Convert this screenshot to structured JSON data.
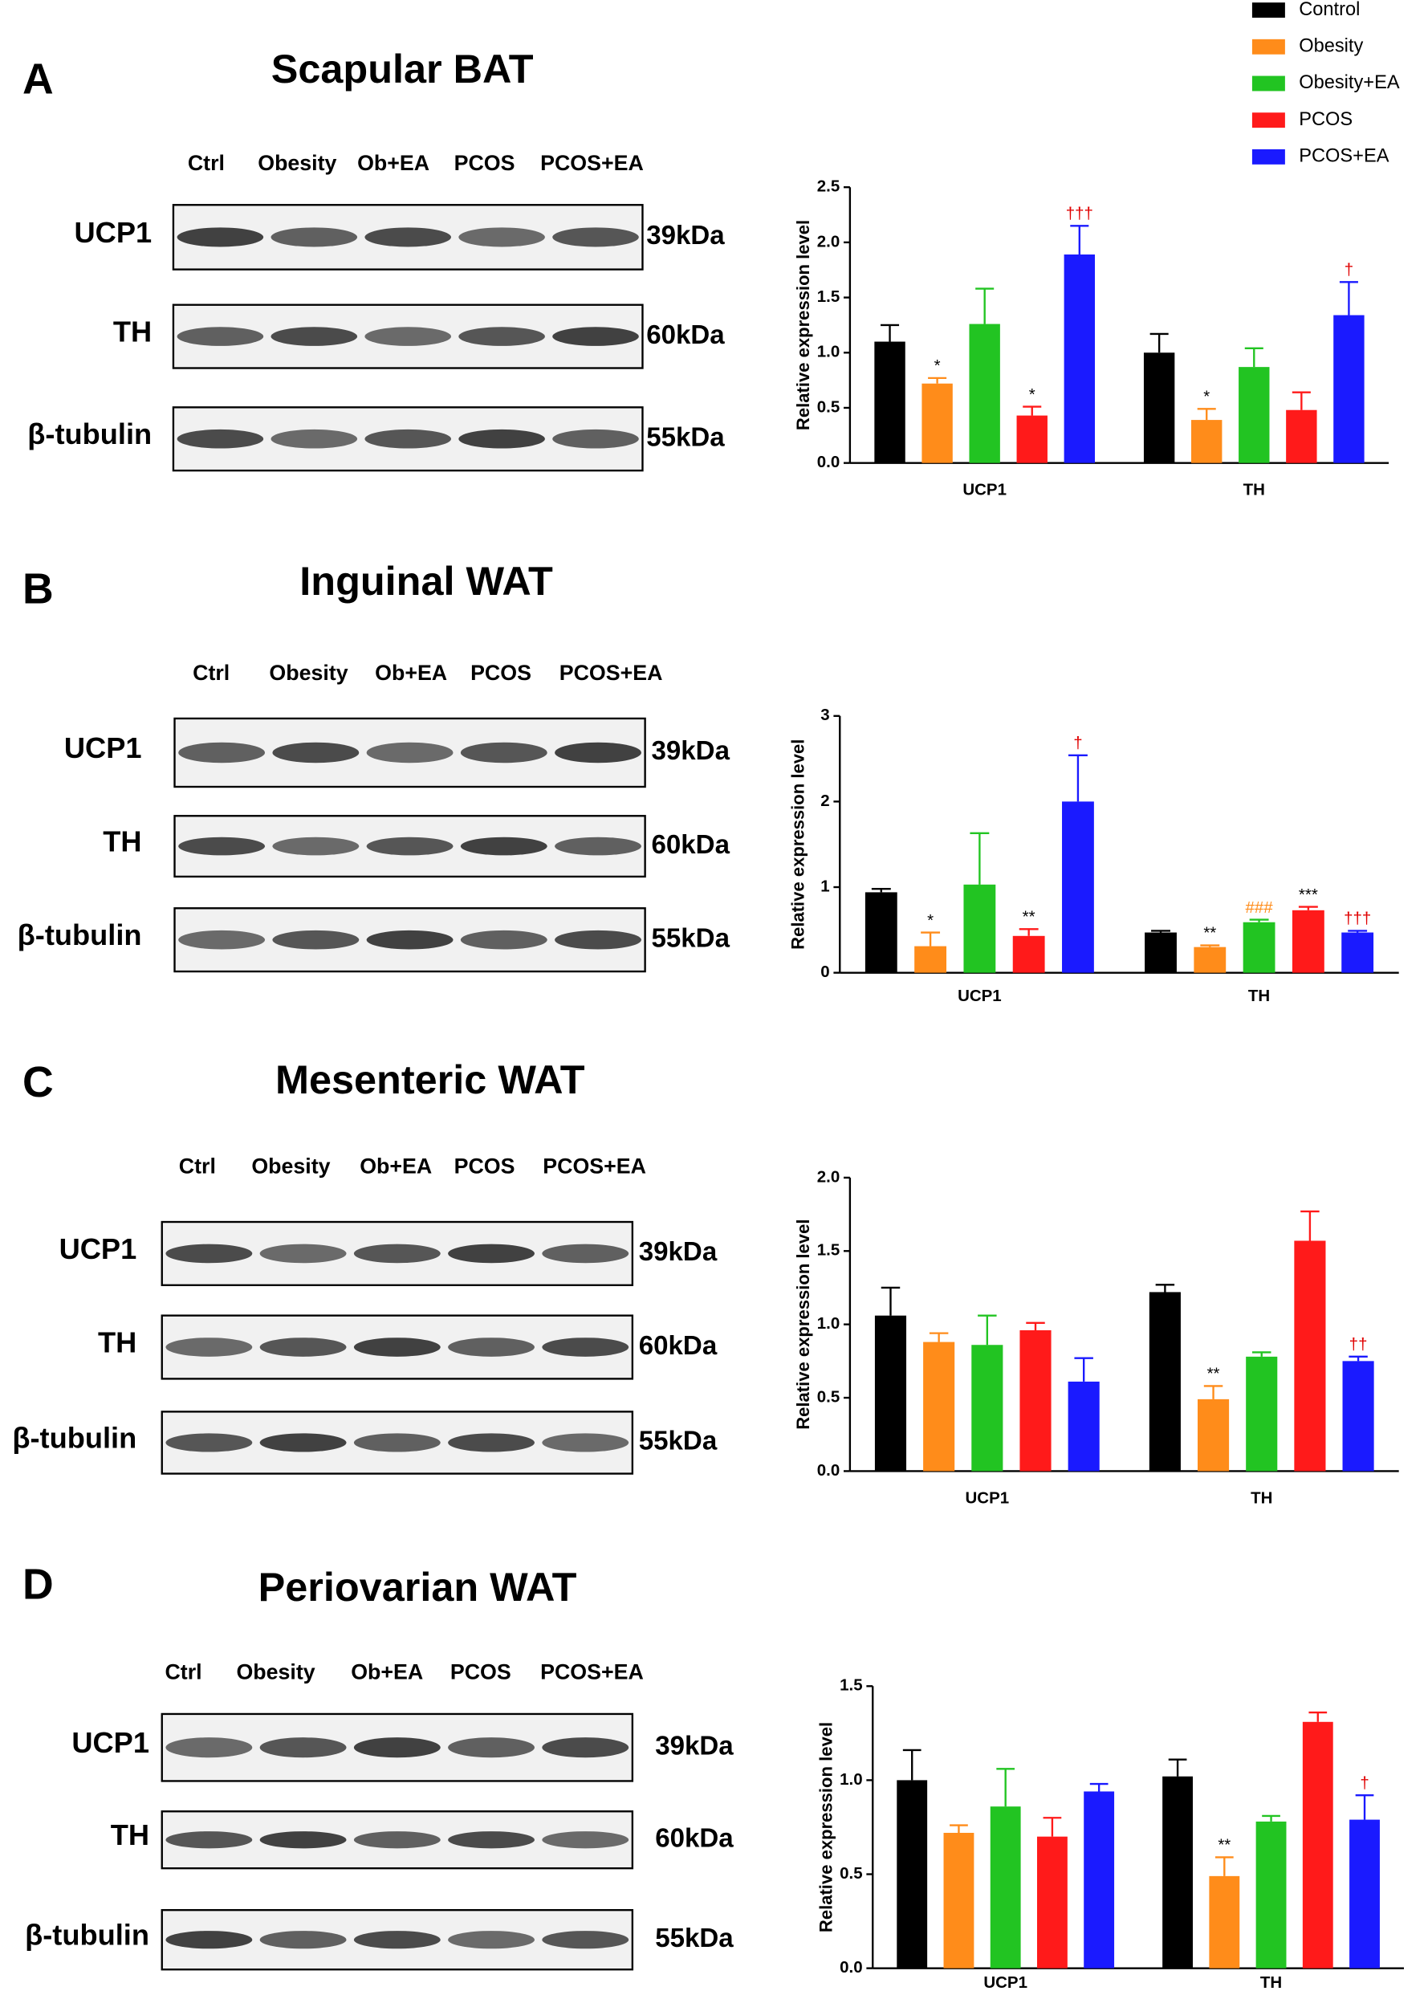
{
  "panels": [
    {
      "letter": "A",
      "title": "Scapular BAT",
      "lanes": [
        "Ctrl",
        "Obesity",
        "Ob+EA",
        "PCOS",
        "PCOS+EA"
      ],
      "rows": [
        {
          "protein": "UCP1",
          "kda": "39kDa"
        },
        {
          "protein": "TH",
          "kda": "60kDa"
        },
        {
          "protein": "β-tubulin",
          "kda": "55kDa"
        }
      ]
    },
    {
      "letter": "B",
      "title": "Inguinal WAT",
      "lanes": [
        "Ctrl",
        "Obesity",
        "Ob+EA",
        "PCOS",
        "PCOS+EA"
      ],
      "rows": [
        {
          "protein": "UCP1",
          "kda": "39kDa"
        },
        {
          "protein": "TH",
          "kda": "60kDa"
        },
        {
          "protein": "β-tubulin",
          "kda": "55kDa"
        }
      ]
    },
    {
      "letter": "C",
      "title": "Mesenteric WAT",
      "lanes": [
        "Ctrl",
        "Obesity",
        "Ob+EA",
        "PCOS",
        "PCOS+EA"
      ],
      "rows": [
        {
          "protein": "UCP1",
          "kda": "39kDa"
        },
        {
          "protein": "TH",
          "kda": "60kDa"
        },
        {
          "protein": "β-tubulin",
          "kda": "55kDa"
        }
      ]
    },
    {
      "letter": "D",
      "title": "Periovarian WAT",
      "lanes": [
        "Ctrl",
        "Obesity",
        "Ob+EA",
        "PCOS",
        "PCOS+EA"
      ],
      "rows": [
        {
          "protein": "UCP1",
          "kda": "39kDa"
        },
        {
          "protein": "TH",
          "kda": "60kDa"
        },
        {
          "protein": "β-tubulin",
          "kda": "55kDa"
        }
      ]
    }
  ],
  "chart_data": [
    {
      "type": "bar",
      "y_label": "Relative expression level",
      "categories": [
        "UCP1",
        "TH"
      ],
      "ylim": [
        0,
        2.5
      ],
      "yticks": [
        {
          "value": 0,
          "label": "0.0"
        },
        {
          "value": 0.5,
          "label": "0.5"
        },
        {
          "value": 1,
          "label": "1.0"
        },
        {
          "value": 1.5,
          "label": "1.5"
        },
        {
          "value": 2,
          "label": "2.0"
        },
        {
          "value": 2.5,
          "label": "2.5"
        }
      ],
      "series": [
        {
          "name": "Control",
          "color": "#000000",
          "values": [
            1.1,
            1.0
          ],
          "errors": [
            0.15,
            0.17
          ],
          "annotations": [
            null,
            null
          ]
        },
        {
          "name": "Obesity",
          "color": "#ff8c1a",
          "values": [
            0.72,
            0.39
          ],
          "errors": [
            0.05,
            0.1
          ],
          "annotations": [
            {
              "text": "*",
              "color": "#000000"
            },
            {
              "text": "*",
              "color": "#000000"
            }
          ]
        },
        {
          "name": "Obesity+EA",
          "color": "#22c422",
          "values": [
            1.26,
            0.87
          ],
          "errors": [
            0.32,
            0.17
          ],
          "annotations": [
            null,
            null
          ]
        },
        {
          "name": "PCOS",
          "color": "#ff1a1a",
          "values": [
            0.43,
            0.48
          ],
          "errors": [
            0.08,
            0.16
          ],
          "annotations": [
            {
              "text": "*",
              "color": "#000000"
            },
            null
          ]
        },
        {
          "name": "PCOS+EA",
          "color": "#1a1aff",
          "values": [
            1.89,
            1.34
          ],
          "errors": [
            0.26,
            0.3
          ],
          "annotations": [
            {
              "text": "†††",
              "color": "#e00000"
            },
            {
              "text": "†",
              "color": "#e00000"
            }
          ]
        }
      ]
    },
    {
      "type": "bar",
      "y_label": "Relative expression level",
      "categories": [
        "UCP1",
        "TH"
      ],
      "ylim": [
        0,
        3
      ],
      "yticks": [
        0,
        1,
        2,
        3
      ],
      "series": [
        {
          "color": "#000000",
          "values": [
            0.94,
            0.47
          ],
          "errors": [
            0.04,
            0.02
          ],
          "annotations": [
            null,
            null
          ]
        },
        {
          "color": "#ff8c1a",
          "values": [
            0.31,
            0.3
          ],
          "errors": [
            0.16,
            0.02
          ],
          "annotations": [
            {
              "text": "*",
              "color": "#000000"
            },
            {
              "text": "**",
              "color": "#000000"
            }
          ]
        },
        {
          "color": "#22c422",
          "values": [
            1.03,
            0.59
          ],
          "errors": [
            0.6,
            0.03
          ],
          "annotations": [
            null,
            {
              "text": "###",
              "color": "#ff8c1a"
            }
          ]
        },
        {
          "color": "#ff1a1a",
          "values": [
            0.43,
            0.73
          ],
          "errors": [
            0.08,
            0.04
          ],
          "annotations": [
            {
              "text": "**",
              "color": "#000000"
            },
            {
              "text": "***",
              "color": "#000000"
            }
          ]
        },
        {
          "color": "#1a1aff",
          "values": [
            2.0,
            0.47
          ],
          "errors": [
            0.54,
            0.02
          ],
          "annotations": [
            {
              "text": "†",
              "color": "#e00000"
            },
            {
              "text": "†††",
              "color": "#e00000"
            }
          ]
        }
      ]
    },
    {
      "type": "bar",
      "y_label": "Relative expression level",
      "categories": [
        "UCP1",
        "TH"
      ],
      "ylim": [
        0,
        2
      ],
      "yticks": [
        {
          "value": 0,
          "label": "0.0"
        },
        {
          "value": 0.5,
          "label": "0.5"
        },
        {
          "value": 1,
          "label": "1.0"
        },
        {
          "value": 1.5,
          "label": "1.5"
        },
        {
          "value": 2,
          "label": "2.0"
        }
      ],
      "series": [
        {
          "color": "#000000",
          "values": [
            1.06,
            1.22
          ],
          "errors": [
            0.19,
            0.05
          ],
          "annotations": [
            null,
            null
          ]
        },
        {
          "color": "#ff8c1a",
          "values": [
            0.88,
            0.49
          ],
          "errors": [
            0.06,
            0.09
          ],
          "annotations": [
            null,
            {
              "text": "**",
              "color": "#000000"
            }
          ]
        },
        {
          "color": "#22c422",
          "values": [
            0.86,
            0.78
          ],
          "errors": [
            0.2,
            0.03
          ],
          "annotations": [
            null,
            null
          ]
        },
        {
          "color": "#ff1a1a",
          "values": [
            0.96,
            1.57
          ],
          "errors": [
            0.05,
            0.2
          ],
          "annotations": [
            null,
            null
          ]
        },
        {
          "color": "#1a1aff",
          "values": [
            0.61,
            0.75
          ],
          "errors": [
            0.16,
            0.03
          ],
          "annotations": [
            null,
            {
              "text": "††",
              "color": "#e00000"
            }
          ]
        }
      ]
    },
    {
      "type": "bar",
      "y_label": "Relative expression level",
      "categories": [
        "UCP1",
        "TH"
      ],
      "ylim": [
        0,
        1.5
      ],
      "yticks": [
        {
          "value": 0,
          "label": "0.0"
        },
        {
          "value": 0.5,
          "label": "0.5"
        },
        {
          "value": 1,
          "label": "1.0"
        },
        {
          "value": 1.5,
          "label": "1.5"
        }
      ],
      "series": [
        {
          "color": "#000000",
          "values": [
            1.0,
            1.02
          ],
          "errors": [
            0.16,
            0.09
          ],
          "annotations": [
            null,
            null
          ]
        },
        {
          "color": "#ff8c1a",
          "values": [
            0.72,
            0.49
          ],
          "errors": [
            0.04,
            0.1
          ],
          "annotations": [
            null,
            {
              "text": "**",
              "color": "#000000"
            }
          ]
        },
        {
          "color": "#22c422",
          "values": [
            0.86,
            0.78
          ],
          "errors": [
            0.2,
            0.03
          ],
          "annotations": [
            null,
            null
          ]
        },
        {
          "color": "#ff1a1a",
          "values": [
            0.7,
            1.31
          ],
          "errors": [
            0.1,
            0.05
          ],
          "annotations": [
            null,
            null
          ]
        },
        {
          "color": "#1a1aff",
          "values": [
            0.94,
            0.79
          ],
          "errors": [
            0.04,
            0.13
          ],
          "annotations": [
            null,
            {
              "text": "†",
              "color": "#e00000"
            }
          ]
        }
      ]
    }
  ]
}
